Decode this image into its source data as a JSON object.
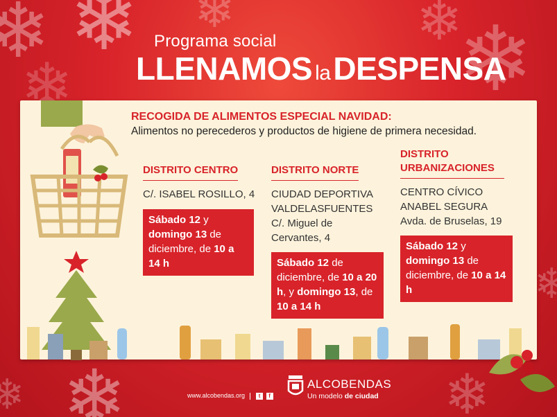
{
  "header": {
    "program": "Programa social",
    "title_part1": "LLENAMOS",
    "title_part2": "la",
    "title_part3": "DESPENSA"
  },
  "intro": {
    "title": "RECOGIDA DE ALIMENTOS ESPECIAL NAVIDAD:",
    "subtitle": "Alimentos no perecederos y productos de higiene de primera necesidad."
  },
  "districts": [
    {
      "name": "DISTRITO CENTRO",
      "address": "C/. ISABEL ROSILLO, 4",
      "date_b1": "Sábado 12",
      "date_t1": " y ",
      "date_b2": "domingo 13",
      "date_t2": " de diciembre, de ",
      "date_b3": "10 a 14 h"
    },
    {
      "name": "DISTRITO NORTE",
      "address_line1": "CIUDAD DEPORTIVA",
      "address_line2": "VALDELASFUENTES",
      "address_line3": "C/. Miguel de Cervantes, 4",
      "date_b1": "Sábado 12",
      "date_t1": " de diciembre, de ",
      "date_b2": "10 a 20 h",
      "date_t2": ", y ",
      "date_b3": "domingo 13",
      "date_t3": ", de ",
      "date_b4": "10 a 14 h"
    },
    {
      "name": "DISTRITO URBANIZACIONES",
      "address_line1": "CENTRO CÍVICO",
      "address_line2": "ANABEL SEGURA",
      "address_line3": "Avda. de Bruselas, 19",
      "date_b1": "Sábado 12",
      "date_t1": " y ",
      "date_b2": "domingo 13",
      "date_t2": " de diciembre, de ",
      "date_b3": "10 a 14 h"
    }
  ],
  "footer": {
    "website": "www.alcobendas.org",
    "twitter": "t",
    "facebook": "f",
    "logo_name": "ALCOBENDAS",
    "slogan_text": "Un modelo",
    "slogan_bold": "de ciudad"
  },
  "colors": {
    "brand_red": "#d8232a",
    "panel_cream": "#fdf3dc",
    "basket_gold": "#d9b979",
    "tree_green": "#9aa94b"
  },
  "icons": [
    "snowflake-icon",
    "basket-icon",
    "christmas-tree-icon",
    "star-icon",
    "holly-icon",
    "alcobendas-logo-icon",
    "twitter-icon",
    "facebook-icon"
  ]
}
